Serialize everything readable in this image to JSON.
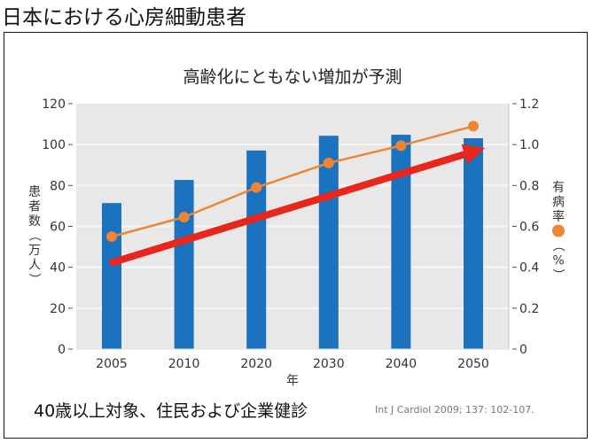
{
  "page": {
    "title": "日本における心房細動患者",
    "note": "40歳以上対象、住民および企業健診",
    "citation": "Int J Cardiol 2009; 137: 102-107."
  },
  "colors": {
    "bar": "#1b73bf",
    "line": "#ee8434",
    "arrow": "#e8261c",
    "plot_bg": "#e8e8e8",
    "grid": "#f6f6f6"
  },
  "chart_data": {
    "type": "bar",
    "title": "高齢化にともない増加が予測",
    "xlabel": "年",
    "ylabel": "患者数（万人）",
    "y2label": "有病率（%）",
    "y2label_parts": [
      "有",
      "病",
      "率",
      "●",
      "（",
      "%",
      "）"
    ],
    "ylabel_parts": [
      "患",
      "者",
      "数",
      "（",
      "万",
      "人",
      "）"
    ],
    "categories": [
      "2005",
      "2010",
      "2020",
      "2030",
      "2040",
      "2050"
    ],
    "ylim": [
      0,
      120
    ],
    "y_ticks": [
      0,
      20,
      40,
      60,
      80,
      100,
      120
    ],
    "y_tick_labels": [
      "0",
      "20",
      "40",
      "60",
      "80",
      "100",
      "120"
    ],
    "y2lim": [
      0,
      1.2
    ],
    "y2_ticks": [
      0,
      0.2,
      0.4,
      0.6,
      0.8,
      1.0,
      1.2
    ],
    "y2_tick_labels": [
      "0",
      "0.2",
      "0.4",
      "0.6",
      "0.8",
      "1.0",
      "1.2"
    ],
    "grid": true,
    "series": [
      {
        "name": "患者数（万人）",
        "type": "bar",
        "axis": "left",
        "values": [
          71.4,
          82.7,
          97.1,
          104.3,
          104.8,
          103.1
        ]
      },
      {
        "name": "有病率（%）",
        "type": "line",
        "axis": "right",
        "marker": "circle",
        "values": [
          0.55,
          0.645,
          0.79,
          0.91,
          0.995,
          1.09
        ]
      }
    ],
    "annotations": [
      {
        "type": "arrow",
        "description": "increasing trend",
        "from": {
          "x": "2005",
          "y": 42
        },
        "to": {
          "x": "2050",
          "y": 97
        }
      }
    ]
  }
}
